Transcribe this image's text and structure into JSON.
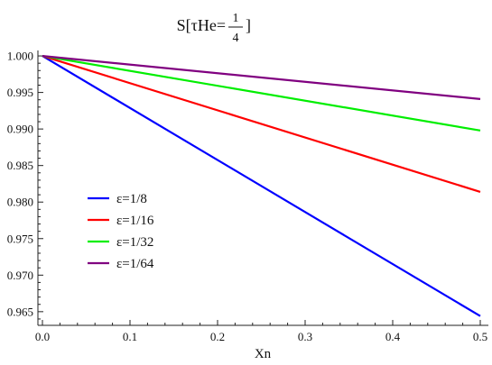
{
  "chart_data": {
    "type": "line",
    "title": {
      "prefix": "S[τHe=",
      "numerator": "1",
      "denominator": "4",
      "suffix": "]"
    },
    "xlabel": "Xn",
    "ylabel": "",
    "xlim": [
      0.0,
      0.5
    ],
    "ylim": [
      0.9635,
      1.0005
    ],
    "x_ticks": [
      0.0,
      0.1,
      0.2,
      0.3,
      0.4,
      0.5
    ],
    "x_tick_labels": [
      "0.0",
      "0.1",
      "0.2",
      "0.3",
      "0.4",
      "0.5"
    ],
    "y_ticks": [
      0.965,
      0.97,
      0.975,
      0.98,
      0.985,
      0.99,
      0.995,
      1.0
    ],
    "y_tick_labels": [
      "0.965",
      "0.970",
      "0.975",
      "0.980",
      "0.985",
      "0.990",
      "0.995",
      "1.000"
    ],
    "grid": false,
    "legend_position": "left-center",
    "series": [
      {
        "name": "ε=1/8",
        "color": "#0000ff",
        "x": [
          0.0,
          0.5
        ],
        "y": [
          1.0,
          0.9644
        ]
      },
      {
        "name": "ε=1/16",
        "color": "#ff0000",
        "x": [
          0.0,
          0.5
        ],
        "y": [
          1.0,
          0.9814
        ]
      },
      {
        "name": "ε=1/32",
        "color": "#00ee00",
        "x": [
          0.0,
          0.5
        ],
        "y": [
          1.0,
          0.9898
        ]
      },
      {
        "name": "ε=1/64",
        "color": "#800080",
        "x": [
          0.0,
          0.5
        ],
        "y": [
          1.0,
          0.9941
        ]
      }
    ]
  }
}
